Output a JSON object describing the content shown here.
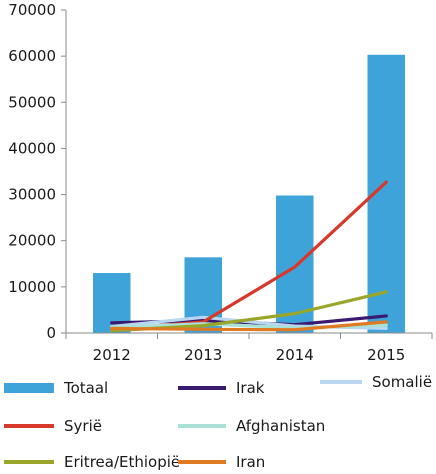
{
  "chart_data": {
    "type": "bar",
    "categories": [
      "2012",
      "2013",
      "2014",
      "2015"
    ],
    "ylim": [
      0,
      70000
    ],
    "yticks": [
      0,
      10000,
      20000,
      30000,
      40000,
      50000,
      60000,
      70000
    ],
    "grid": false,
    "bar_series": {
      "name": "Totaal",
      "color": "#3ea3d8",
      "values": [
        13000,
        16400,
        29800,
        60300
      ]
    },
    "line_series": [
      {
        "name": "Irak",
        "color": "#3a1a6e",
        "values": [
          2200,
          2700,
          1800,
          3700
        ]
      },
      {
        "name": "Somalië",
        "color": "#b8d6ef",
        "values": [
          1400,
          3400,
          1500,
          1000
        ]
      },
      {
        "name": "Syrië",
        "color": "#d8382a",
        "values": [
          800,
          2400,
          14300,
          32700
        ]
      },
      {
        "name": "Afghanistan",
        "color": "#a8e2d6",
        "values": [
          1200,
          2000,
          1100,
          1700
        ]
      },
      {
        "name": "Eritrea/Ethiopië",
        "color": "#9aa62a",
        "values": [
          500,
          1600,
          4200,
          8900
        ]
      },
      {
        "name": "Iran",
        "color": "#e07a22",
        "values": [
          1000,
          800,
          700,
          2400
        ]
      }
    ],
    "legend_placement": "bottom",
    "legend_order": [
      "Totaal",
      "Irak",
      "Somalië",
      "Syrië",
      "Afghanistan",
      "Eritrea/Ethiopië",
      "Iran"
    ]
  }
}
